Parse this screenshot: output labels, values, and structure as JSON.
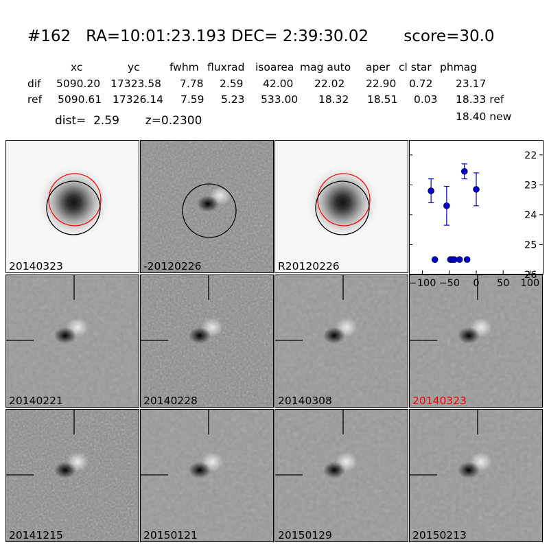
{
  "header": {
    "title": "#162   RA=10:01:23.193 DEC= 2:39:30.02       score=30.0",
    "columns": [
      "xc",
      "yc",
      "fwhm",
      "fluxrad",
      "isoarea",
      "mag auto",
      "aper",
      "cl star",
      "phmag"
    ],
    "rows": [
      {
        "label": "dif",
        "values": [
          "5090.20",
          "17323.58",
          "7.78",
          "2.59",
          "42.00",
          "22.02",
          "22.90",
          "0.72",
          "23.17"
        ]
      },
      {
        "label": "ref",
        "values": [
          "5090.61",
          "17326.14",
          "7.59",
          "5.23",
          "533.00",
          "18.32",
          "18.51",
          "0.03",
          "18.33 ref"
        ]
      }
    ],
    "extra_phmag": "18.40 new",
    "dist_line": "dist=  2.59       z=0.2300"
  },
  "stamps": [
    {
      "label": "20140323",
      "kind": "galaxy",
      "label_color": "#000000"
    },
    {
      "label": "-20120226",
      "kind": "diff-circle",
      "label_color": "#000000"
    },
    {
      "label": "R20120226",
      "kind": "galaxy",
      "label_color": "#000000"
    },
    {
      "label": "20140221",
      "kind": "diff",
      "label_color": "#000000"
    },
    {
      "label": "20140228",
      "kind": "diff-noisy",
      "label_color": "#000000"
    },
    {
      "label": "20140308",
      "kind": "diff",
      "label_color": "#000000"
    },
    {
      "label": "20140323",
      "kind": "diff-hl",
      "label_color": "#ff0000"
    },
    {
      "label": "20141215",
      "kind": "diff-noisy",
      "label_color": "#000000"
    },
    {
      "label": "20150121",
      "kind": "diff",
      "label_color": "#000000"
    },
    {
      "label": "20150129",
      "kind": "diff",
      "label_color": "#000000"
    },
    {
      "label": "20150213",
      "kind": "diff",
      "label_color": "#000000"
    }
  ],
  "chart_data": {
    "type": "scatter",
    "xlim": [
      -125,
      125
    ],
    "ylim": [
      26,
      21.5
    ],
    "y_inverted": true,
    "xticks": [
      -100,
      -50,
      0,
      50,
      100
    ],
    "yticks": [
      22,
      23,
      24,
      25,
      26
    ],
    "series": [
      {
        "color": "#0000cc",
        "points": [
          {
            "x": -84,
            "y": 23.2,
            "err": 0.4
          },
          {
            "x": -77,
            "y": 25.5,
            "err": 0.05
          },
          {
            "x": -55,
            "y": 23.7,
            "err": 0.65
          },
          {
            "x": -48,
            "y": 25.5,
            "err": 0.05
          },
          {
            "x": -44,
            "y": 25.5,
            "err": 0.05
          },
          {
            "x": -41,
            "y": 25.5,
            "err": 0.05
          },
          {
            "x": -31,
            "y": 25.5,
            "err": 0.05
          },
          {
            "x": -22,
            "y": 22.55,
            "err": 0.25
          },
          {
            "x": -17,
            "y": 25.5,
            "err": 0.05
          },
          {
            "x": 0,
            "y": 23.15,
            "err": 0.55
          }
        ]
      }
    ]
  }
}
